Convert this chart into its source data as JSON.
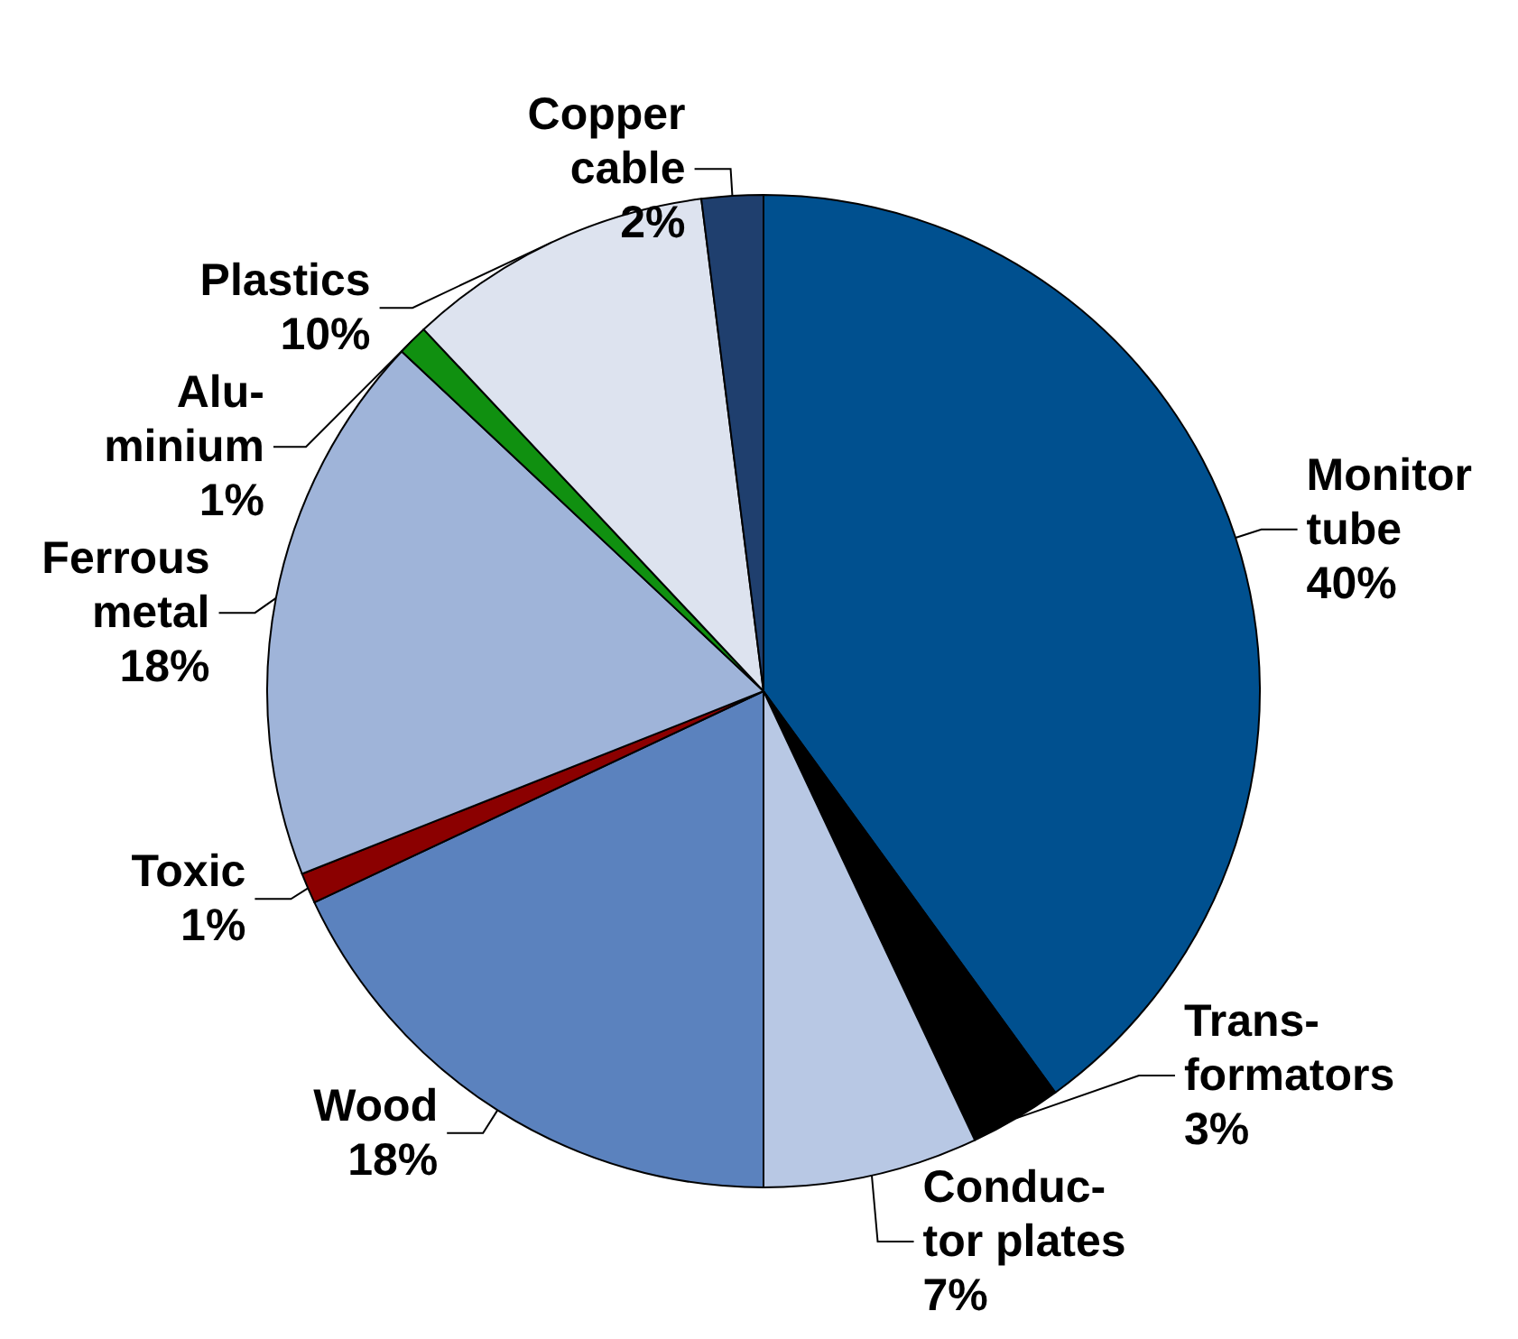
{
  "chart_data": {
    "type": "pie",
    "categories": [
      "Monitor\ntube",
      "Trans-\nformators",
      "Conduc-\ntor plates",
      "Wood",
      "Toxic",
      "Ferrous\nmetal",
      "Alu-\nminium",
      "Plastics",
      "Copper\ncable"
    ],
    "values": [
      40,
      3,
      7,
      18,
      1,
      18,
      1,
      10,
      2
    ],
    "value_labels": [
      "40%",
      "3%",
      "7%",
      "18%",
      "1%",
      "18%",
      "1%",
      "10%",
      "2%"
    ],
    "colors": [
      "#00508f",
      "#000000",
      "#b8c8e4",
      "#5b82be",
      "#8b0000",
      "#9fb4d9",
      "#109010",
      "#dde3ef",
      "#1f3f6e"
    ]
  }
}
